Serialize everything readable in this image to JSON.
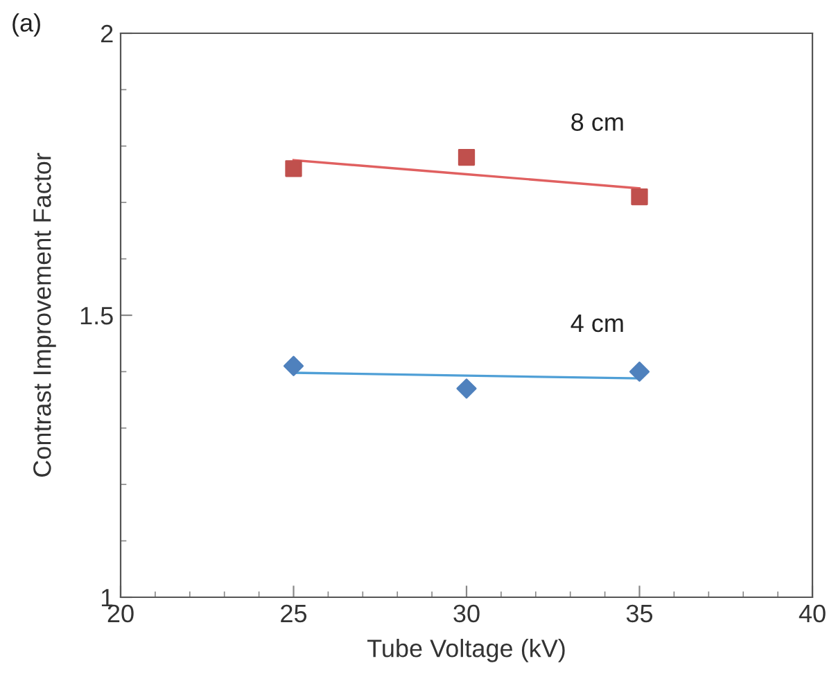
{
  "chart_data": {
    "type": "scatter",
    "xlabel": "Tube Voltage (kV)",
    "ylabel": "Contrast Improvement Factor",
    "x": [
      25,
      30,
      35
    ],
    "series": [
      {
        "name": "8 cm",
        "color": "#c0504d",
        "marker": "square",
        "values": [
          1.76,
          1.78,
          1.71
        ]
      },
      {
        "type": "line",
        "color": "#e06060",
        "marker": "none",
        "values": [
          1.775,
          1.75,
          1.725
        ]
      },
      {
        "name": "4 cm",
        "color": "#4f81bd",
        "marker": "diamond",
        "values": [
          1.41,
          1.37,
          1.4
        ]
      },
      {
        "type": "line",
        "color": "#4f9fd6",
        "marker": "none",
        "values": [
          1.398,
          1.393,
          1.388
        ]
      }
    ],
    "xlim": [
      20,
      40
    ],
    "xticks": [
      20,
      25,
      30,
      35,
      40
    ],
    "ylim": [
      1,
      2
    ],
    "yticks": [
      1,
      1.5,
      2
    ],
    "grid": false,
    "legend": false,
    "annotations": [
      "(a)"
    ]
  }
}
